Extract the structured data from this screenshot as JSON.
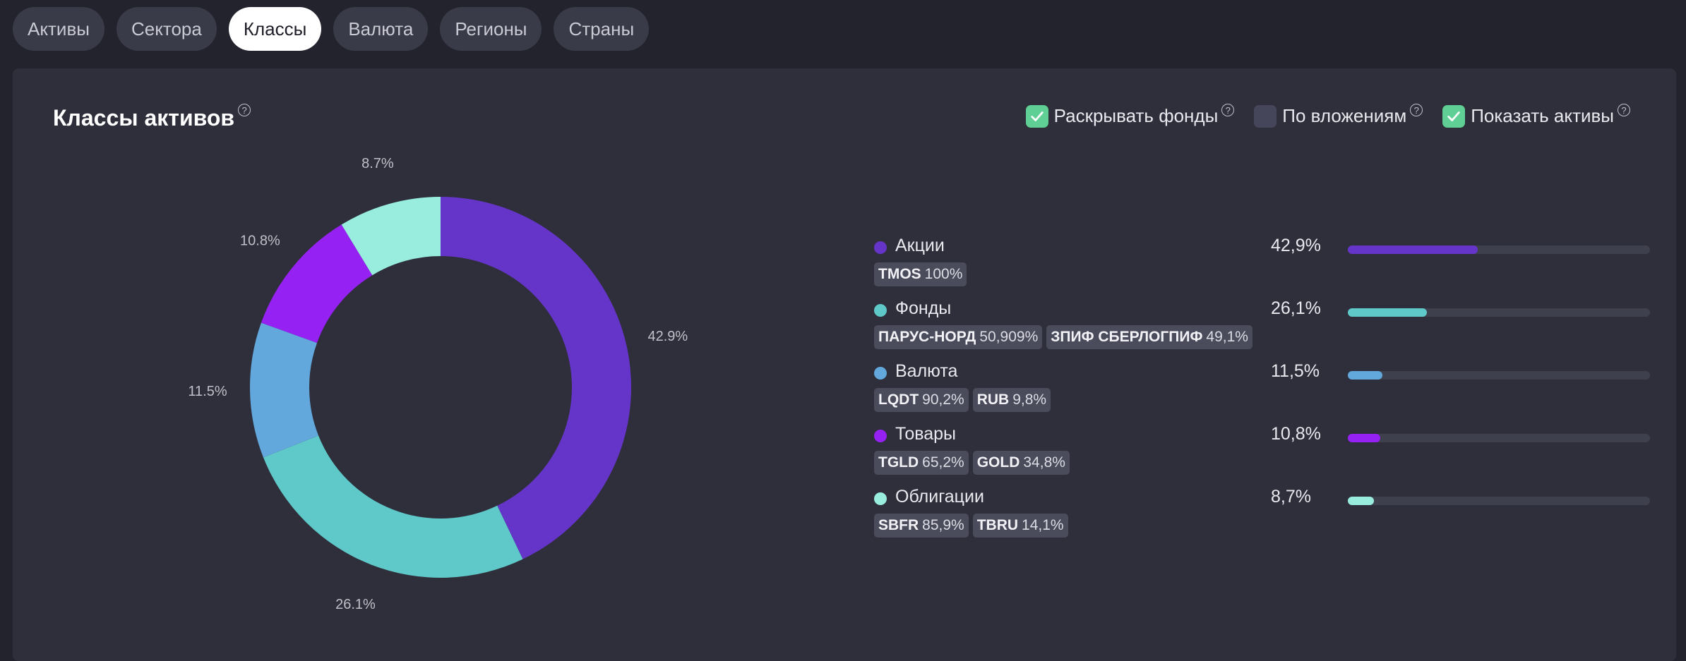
{
  "tabs": [
    {
      "label": "Активы",
      "active": false
    },
    {
      "label": "Сектора",
      "active": false
    },
    {
      "label": "Классы",
      "active": true
    },
    {
      "label": "Валюта",
      "active": false
    },
    {
      "label": "Регионы",
      "active": false
    },
    {
      "label": "Страны",
      "active": false
    }
  ],
  "card": {
    "title": "Классы активов",
    "help_glyph": "?",
    "options": [
      {
        "label": "Раскрывать фонды",
        "checked": true
      },
      {
        "label": "По вложениям",
        "checked": false
      },
      {
        "label": "Показать активы",
        "checked": true
      }
    ]
  },
  "chart_data": {
    "type": "pie",
    "title": "Классы активов",
    "slices": [
      {
        "name": "Акции",
        "value": 42.9,
        "label": "42.9%",
        "color": "#6535c9"
      },
      {
        "name": "Фонды",
        "value": 26.1,
        "label": "26.1%",
        "color": "#5fc8c8"
      },
      {
        "name": "Валюта",
        "value": 11.5,
        "label": "11.5%",
        "color": "#62a8dd"
      },
      {
        "name": "Товары",
        "value": 10.8,
        "label": "10.8%",
        "color": "#9521f3"
      },
      {
        "name": "Облигации",
        "value": 8.7,
        "label": "8.7%",
        "color": "#98eddf"
      }
    ],
    "legend_position": "right"
  },
  "legend": [
    {
      "name": "Акции",
      "percent": "42,9%",
      "value": 42.9,
      "color": "#6535c9",
      "assets": [
        {
          "ticker": "TMOS",
          "share": "100%"
        }
      ]
    },
    {
      "name": "Фонды",
      "percent": "26,1%",
      "value": 26.1,
      "color": "#5fc8c8",
      "assets": [
        {
          "ticker": "ПАРУС-НОРД",
          "share": "50,909%"
        },
        {
          "ticker": "ЗПИФ СБЕРЛОГПИФ",
          "share": "49,1%"
        }
      ]
    },
    {
      "name": "Валюта",
      "percent": "11,5%",
      "value": 11.5,
      "color": "#62a8dd",
      "assets": [
        {
          "ticker": "LQDT",
          "share": "90,2%"
        },
        {
          "ticker": "RUB",
          "share": "9,8%"
        }
      ]
    },
    {
      "name": "Товары",
      "percent": "10,8%",
      "value": 10.8,
      "color": "#9521f3",
      "assets": [
        {
          "ticker": "TGLD",
          "share": "65,2%"
        },
        {
          "ticker": "GOLD",
          "share": "34,8%"
        }
      ]
    },
    {
      "name": "Облигации",
      "percent": "8,7%",
      "value": 8.7,
      "color": "#98eddf",
      "assets": [
        {
          "ticker": "SBFR",
          "share": "85,9%"
        },
        {
          "ticker": "TBRU",
          "share": "14,1%"
        }
      ]
    }
  ]
}
